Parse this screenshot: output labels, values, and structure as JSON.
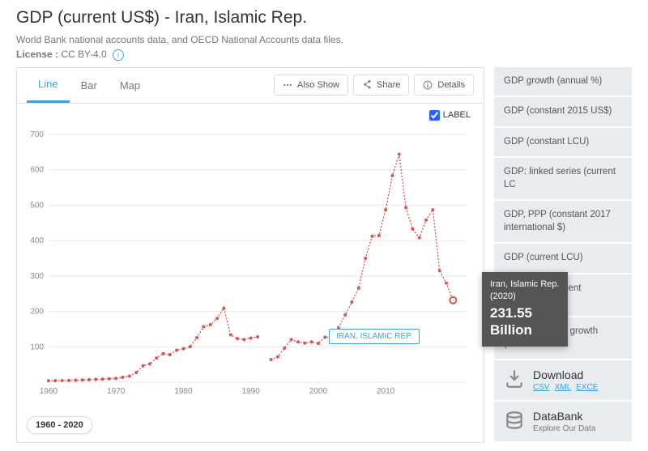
{
  "header": {
    "title": "GDP (current US$) - Iran, Islamic Rep.",
    "subtitle": "World Bank national accounts data, and OECD National Accounts data files.",
    "license_label": "License :",
    "license_value": "CC BY-4.0"
  },
  "tabs": {
    "line": "Line",
    "bar": "Bar",
    "map": "Map",
    "active": "line"
  },
  "toolbar": {
    "also_show": "Also Show",
    "share": "Share",
    "details": "Details"
  },
  "label_toggle": "LABEL",
  "chart": {
    "type": "line",
    "xlim": [
      1960,
      2022
    ],
    "ylim": [
      0,
      700
    ],
    "xticks": [
      1960,
      1970,
      1980,
      1990,
      2000,
      2010
    ],
    "yticks": [
      0,
      100,
      200,
      300,
      400,
      500,
      600,
      700
    ],
    "series_color": "#d9534f",
    "grid_color": "#e8e8e8",
    "axis_text_color": "#888",
    "bg": "#ffffff",
    "marker_size": 2,
    "series_label": "IRAN, ISLAMIC REP.",
    "series": {
      "name": "Iran, Islamic Rep.",
      "seg1": [
        {
          "x": 1960,
          "y": 4
        },
        {
          "x": 1961,
          "y": 4.4
        },
        {
          "x": 1962,
          "y": 4.7
        },
        {
          "x": 1963,
          "y": 5
        },
        {
          "x": 1964,
          "y": 5.5
        },
        {
          "x": 1965,
          "y": 6.2
        },
        {
          "x": 1966,
          "y": 6.8
        },
        {
          "x": 1967,
          "y": 7.6
        },
        {
          "x": 1968,
          "y": 8.6
        },
        {
          "x": 1969,
          "y": 9.7
        },
        {
          "x": 1970,
          "y": 10.6
        },
        {
          "x": 1971,
          "y": 13.7
        },
        {
          "x": 1972,
          "y": 17.2
        },
        {
          "x": 1973,
          "y": 27.1
        },
        {
          "x": 1974,
          "y": 46
        },
        {
          "x": 1975,
          "y": 51.8
        },
        {
          "x": 1976,
          "y": 68.1
        },
        {
          "x": 1977,
          "y": 80.6
        },
        {
          "x": 1978,
          "y": 77.9
        },
        {
          "x": 1979,
          "y": 90.4
        },
        {
          "x": 1980,
          "y": 94.4
        },
        {
          "x": 1981,
          "y": 100.5
        },
        {
          "x": 1982,
          "y": 125.9
        },
        {
          "x": 1983,
          "y": 156.4
        },
        {
          "x": 1984,
          "y": 162.3
        },
        {
          "x": 1985,
          "y": 180.2
        },
        {
          "x": 1986,
          "y": 209.1
        },
        {
          "x": 1987,
          "y": 134
        },
        {
          "x": 1988,
          "y": 123.1
        },
        {
          "x": 1989,
          "y": 120.5
        },
        {
          "x": 1990,
          "y": 124.8
        },
        {
          "x": 1991,
          "y": 128
        }
      ],
      "seg2": [
        {
          "x": 1993,
          "y": 63.7
        },
        {
          "x": 1994,
          "y": 71.8
        },
        {
          "x": 1995,
          "y": 96.4
        },
        {
          "x": 1996,
          "y": 120.4
        },
        {
          "x": 1997,
          "y": 113.9
        },
        {
          "x": 1998,
          "y": 110.3
        },
        {
          "x": 1999,
          "y": 113.8
        },
        {
          "x": 2000,
          "y": 109.6
        },
        {
          "x": 2001,
          "y": 126.9
        },
        {
          "x": 2002,
          "y": 128.6
        },
        {
          "x": 2003,
          "y": 153.5
        },
        {
          "x": 2004,
          "y": 190
        },
        {
          "x": 2005,
          "y": 226.5
        },
        {
          "x": 2006,
          "y": 266.3
        },
        {
          "x": 2007,
          "y": 349.9
        },
        {
          "x": 2008,
          "y": 412.3
        },
        {
          "x": 2009,
          "y": 414.1
        },
        {
          "x": 2010,
          "y": 487.1
        },
        {
          "x": 2011,
          "y": 583.5
        },
        {
          "x": 2012,
          "y": 644
        },
        {
          "x": 2013,
          "y": 493
        },
        {
          "x": 2014,
          "y": 432.7
        },
        {
          "x": 2015,
          "y": 408
        },
        {
          "x": 2016,
          "y": 458
        },
        {
          "x": 2017,
          "y": 487
        },
        {
          "x": 2018,
          "y": 315
        },
        {
          "x": 2019,
          "y": 280
        },
        {
          "x": 2020,
          "y": 231.55
        }
      ]
    }
  },
  "tooltip": {
    "country": "Iran, Islamic Rep.",
    "year": "(2020)",
    "value": "231.55",
    "unit": "Billion"
  },
  "year_range": "1960 - 2020",
  "indicators": [
    "GDP growth (annual %)",
    "GDP (constant 2015 US$)",
    "GDP (constant LCU)",
    "GDP: linked series (current LC",
    "GDP, PPP (constant 2017 international $)",
    "GDP (current LCU)",
    "GDP, PPP (current internation",
    "GDP per capita growth (annua"
  ],
  "download": {
    "title": "Download",
    "csv": "CSV",
    "xml": "XML",
    "excel": "EXCE"
  },
  "databank": {
    "title": "DataBank",
    "sub": "Explore Our Data"
  }
}
